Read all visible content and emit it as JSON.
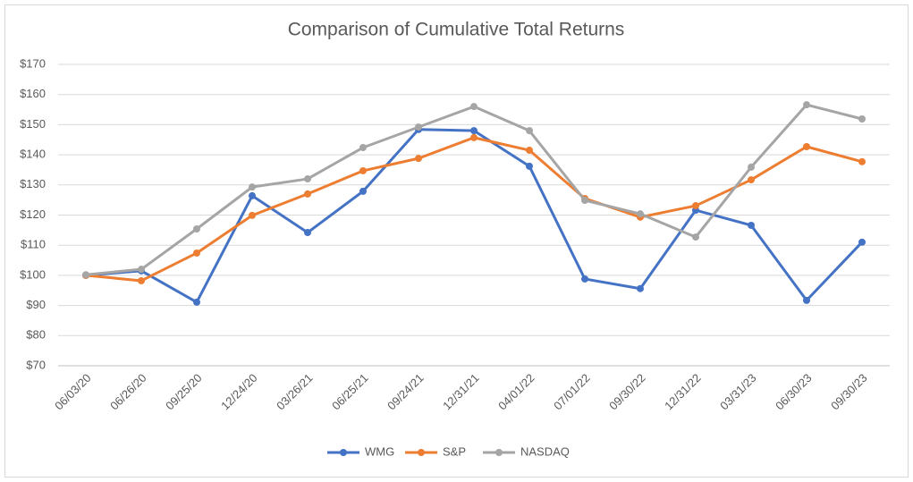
{
  "chart_data": {
    "type": "line",
    "title": "Comparison of Cumulative Total Returns",
    "categories": [
      "06/03/20",
      "06/26/20",
      "09/25/20",
      "12/24/20",
      "03/26/21",
      "06/25/21",
      "09/24/21",
      "12/31/21",
      "04/01/22",
      "07/01/22",
      "09/30/22",
      "12/31/22",
      "03/31/23",
      "06/30/23",
      "09/30/23"
    ],
    "series": [
      {
        "name": "WMG",
        "color": "#4472c4",
        "values": [
          100,
          101.5,
          91.1,
          126.4,
          114.2,
          127.9,
          148.4,
          148,
          136.2,
          98.8,
          95.6,
          121.6,
          116.6,
          91.7,
          111
        ]
      },
      {
        "name": "S&P",
        "color": "#ed7d31",
        "values": [
          100,
          98.2,
          107.4,
          119.9,
          127,
          134.7,
          138.8,
          145.7,
          141.5,
          125.5,
          119.3,
          123.1,
          131.7,
          142.7,
          137.7
        ]
      },
      {
        "name": "NASDAQ",
        "color": "#a5a5a5",
        "values": [
          100.2,
          102,
          115.4,
          129.3,
          132,
          142.4,
          149.2,
          156,
          148,
          124.9,
          120.4,
          112.7,
          135.9,
          156.6,
          151.9
        ]
      }
    ],
    "ylim": [
      70,
      170
    ],
    "yticks": [
      {
        "value": 70,
        "label": "$70"
      },
      {
        "value": 80,
        "label": "$80"
      },
      {
        "value": 90,
        "label": "$90"
      },
      {
        "value": 100,
        "label": "$100"
      },
      {
        "value": 110,
        "label": "$110"
      },
      {
        "value": 120,
        "label": "$120"
      },
      {
        "value": 130,
        "label": "$130"
      },
      {
        "value": 140,
        "label": "$140"
      },
      {
        "value": 150,
        "label": "$150"
      },
      {
        "value": 160,
        "label": "$160"
      },
      {
        "value": 170,
        "label": "$170"
      }
    ],
    "grid": true,
    "legend": "bottom"
  }
}
